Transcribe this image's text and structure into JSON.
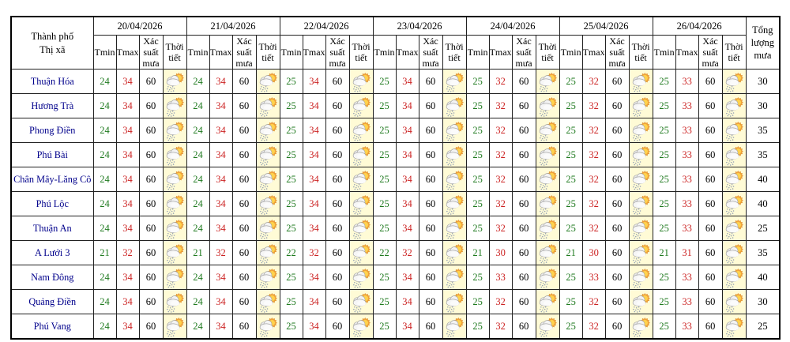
{
  "header": {
    "corner_line1": "Thành phố",
    "corner_line2": "Thị xã",
    "dates": [
      "20/04/2026",
      "21/04/2026",
      "22/04/2026",
      "23/04/2026",
      "24/04/2026",
      "25/04/2026",
      "26/04/2026"
    ],
    "tmin_label": "Tmin",
    "tmax_label": "Tmax",
    "rain_prob_label": "Xác suất mưa",
    "weather_label": "Thời tiết",
    "total_label": "Tổng lượng mưa"
  },
  "weather_icon": "sun-behind-rain-cloud",
  "rows": [
    {
      "name": "Thuận Hóa",
      "days": [
        [
          24,
          34,
          60
        ],
        [
          24,
          34,
          60
        ],
        [
          25,
          34,
          60
        ],
        [
          25,
          34,
          60
        ],
        [
          25,
          32,
          60
        ],
        [
          25,
          32,
          60
        ],
        [
          25,
          33,
          60
        ]
      ],
      "total": 30
    },
    {
      "name": "Hương Trà",
      "days": [
        [
          24,
          34,
          60
        ],
        [
          24,
          34,
          60
        ],
        [
          25,
          34,
          60
        ],
        [
          25,
          34,
          60
        ],
        [
          25,
          32,
          60
        ],
        [
          25,
          32,
          60
        ],
        [
          25,
          33,
          60
        ]
      ],
      "total": 30
    },
    {
      "name": "Phong Điền",
      "days": [
        [
          24,
          34,
          60
        ],
        [
          24,
          34,
          60
        ],
        [
          25,
          34,
          60
        ],
        [
          25,
          34,
          60
        ],
        [
          25,
          32,
          60
        ],
        [
          25,
          32,
          60
        ],
        [
          25,
          33,
          60
        ]
      ],
      "total": 35
    },
    {
      "name": "Phú Bài",
      "days": [
        [
          24,
          34,
          60
        ],
        [
          24,
          34,
          60
        ],
        [
          25,
          34,
          60
        ],
        [
          25,
          34,
          60
        ],
        [
          25,
          32,
          60
        ],
        [
          25,
          32,
          60
        ],
        [
          25,
          33,
          60
        ]
      ],
      "total": 35
    },
    {
      "name": "Chân Mây-Lăng Cô",
      "days": [
        [
          24,
          34,
          60
        ],
        [
          24,
          34,
          60
        ],
        [
          25,
          34,
          60
        ],
        [
          25,
          34,
          60
        ],
        [
          25,
          32,
          60
        ],
        [
          25,
          32,
          60
        ],
        [
          25,
          33,
          60
        ]
      ],
      "total": 40
    },
    {
      "name": "Phú Lộc",
      "days": [
        [
          24,
          34,
          60
        ],
        [
          24,
          34,
          60
        ],
        [
          25,
          34,
          60
        ],
        [
          25,
          34,
          60
        ],
        [
          25,
          32,
          60
        ],
        [
          25,
          32,
          60
        ],
        [
          25,
          33,
          60
        ]
      ],
      "total": 40
    },
    {
      "name": "Thuận An",
      "days": [
        [
          24,
          34,
          60
        ],
        [
          24,
          34,
          60
        ],
        [
          25,
          34,
          60
        ],
        [
          25,
          34,
          60
        ],
        [
          25,
          32,
          60
        ],
        [
          25,
          32,
          60
        ],
        [
          25,
          33,
          60
        ]
      ],
      "total": 25
    },
    {
      "name": "A Lưới 3",
      "days": [
        [
          21,
          32,
          60
        ],
        [
          21,
          32,
          60
        ],
        [
          22,
          32,
          60
        ],
        [
          22,
          32,
          60
        ],
        [
          21,
          30,
          60
        ],
        [
          21,
          30,
          60
        ],
        [
          21,
          31,
          60
        ]
      ],
      "total": 35
    },
    {
      "name": "Nam Đông",
      "days": [
        [
          24,
          34,
          60
        ],
        [
          24,
          34,
          60
        ],
        [
          25,
          34,
          60
        ],
        [
          25,
          34,
          60
        ],
        [
          25,
          33,
          60
        ],
        [
          25,
          33,
          60
        ],
        [
          25,
          33,
          60
        ]
      ],
      "total": 40
    },
    {
      "name": "Quảng Điền",
      "days": [
        [
          24,
          34,
          60
        ],
        [
          24,
          34,
          60
        ],
        [
          25,
          34,
          60
        ],
        [
          25,
          34,
          60
        ],
        [
          25,
          32,
          60
        ],
        [
          25,
          32,
          60
        ],
        [
          25,
          33,
          60
        ]
      ],
      "total": 30
    },
    {
      "name": "Phú Vang",
      "days": [
        [
          24,
          34,
          60
        ],
        [
          24,
          34,
          60
        ],
        [
          25,
          34,
          60
        ],
        [
          25,
          34,
          60
        ],
        [
          25,
          32,
          60
        ],
        [
          25,
          32,
          60
        ],
        [
          25,
          33,
          60
        ]
      ],
      "total": 25
    }
  ],
  "colors": {
    "tmin_green": "#1f7a1f",
    "tmax_red": "#cc2424",
    "city_navy": "#00008b",
    "weather_cell_bg": "#fffbd6",
    "border": "#222222"
  }
}
